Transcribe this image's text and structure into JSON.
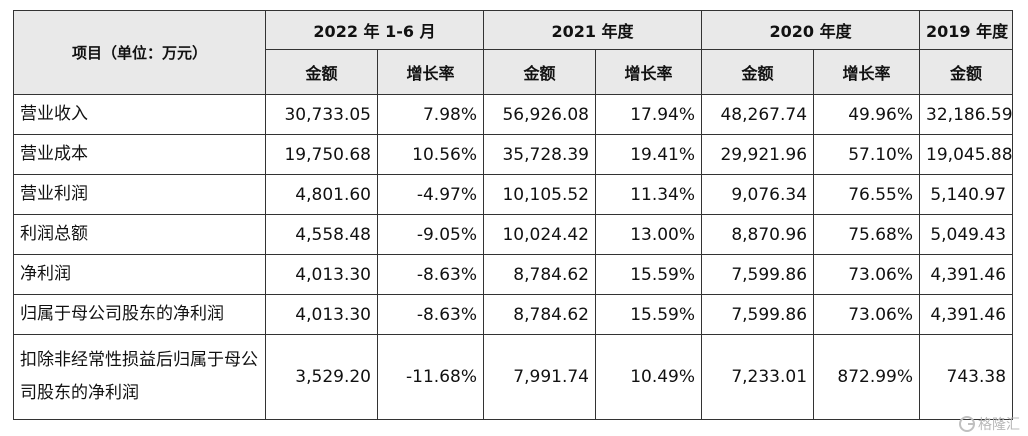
{
  "table": {
    "corner_label": "项目（单位：万元）",
    "periods": [
      "2022 年 1-6 月",
      "2021 年度",
      "2020 年度",
      "2019 年度"
    ],
    "sub_headers": [
      "金额",
      "增长率",
      "金额",
      "增长率",
      "金额",
      "增长率",
      "金额"
    ],
    "rows": [
      {
        "label": "营业收入",
        "values": [
          "30,733.05",
          "7.98%",
          "56,926.08",
          "17.94%",
          "48,267.74",
          "49.96%",
          "32,186.59"
        ]
      },
      {
        "label": "营业成本",
        "values": [
          "19,750.68",
          "10.56%",
          "35,728.39",
          "19.41%",
          "29,921.96",
          "57.10%",
          "19,045.88"
        ]
      },
      {
        "label": "营业利润",
        "values": [
          "4,801.60",
          "-4.97%",
          "10,105.52",
          "11.34%",
          "9,076.34",
          "76.55%",
          "5,140.97"
        ]
      },
      {
        "label": "利润总额",
        "values": [
          "4,558.48",
          "-9.05%",
          "10,024.42",
          "13.00%",
          "8,870.96",
          "75.68%",
          "5,049.43"
        ]
      },
      {
        "label": "净利润",
        "values": [
          "4,013.30",
          "-8.63%",
          "8,784.62",
          "15.59%",
          "7,599.86",
          "73.06%",
          "4,391.46"
        ]
      },
      {
        "label": "归属于母公司股东的净利润",
        "values": [
          "4,013.30",
          "-8.63%",
          "8,784.62",
          "15.59%",
          "7,599.86",
          "73.06%",
          "4,391.46"
        ]
      },
      {
        "label": "扣除非经常性损益后归属于母公司股东的净利润",
        "values": [
          "3,529.20",
          "-11.68%",
          "7,991.74",
          "10.49%",
          "7,233.01",
          "872.99%",
          "743.38"
        ]
      }
    ]
  },
  "watermark": {
    "text": "格隆汇",
    "icon": "gelonghui-logo-icon"
  }
}
